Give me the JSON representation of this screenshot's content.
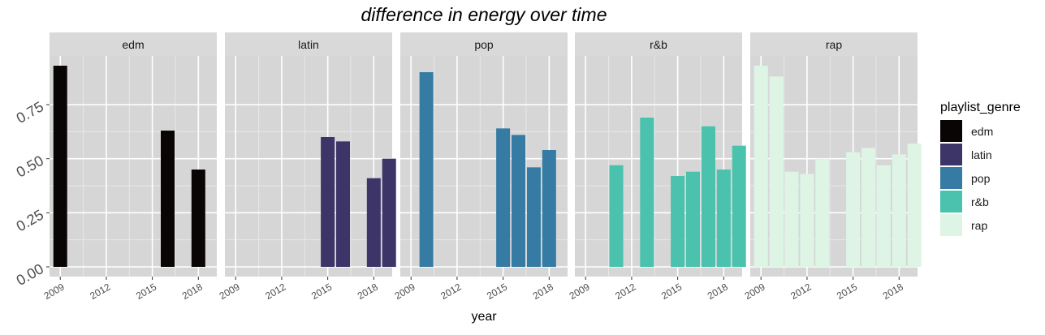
{
  "chart_data": {
    "type": "bar",
    "title": "difference in energy over time",
    "xlabel": "year",
    "ylabel": "",
    "ylim": [
      0,
      0.93
    ],
    "y_ticks": [
      {
        "value": 0.0,
        "label": "0.00"
      },
      {
        "value": 0.25,
        "label": "0.25"
      },
      {
        "value": 0.5,
        "label": "0.50"
      },
      {
        "value": 0.75,
        "label": "0.75"
      }
    ],
    "x_ticks": [
      {
        "value": 2009,
        "label": "2009"
      },
      {
        "value": 2012,
        "label": "2012"
      },
      {
        "value": 2015,
        "label": "2015"
      },
      {
        "value": 2018,
        "label": "2018"
      }
    ],
    "xlim": [
      2008.3,
      2019.2
    ],
    "grid": true,
    "legend": {
      "title": "playlist_genre",
      "position": "right",
      "entries": [
        {
          "name": "edm",
          "color": "#0a0505"
        },
        {
          "name": "latin",
          "color": "#3d3468"
        },
        {
          "name": "pop",
          "color": "#357ba3"
        },
        {
          "name": "r&b",
          "color": "#4ac2ad"
        },
        {
          "name": "rap",
          "color": "#def5e5"
        }
      ]
    },
    "panels": [
      {
        "name": "edm",
        "color": "#0a0505",
        "points": [
          {
            "x": 2009,
            "y": 0.93
          },
          {
            "x": 2016,
            "y": 0.63
          },
          {
            "x": 2018,
            "y": 0.45
          }
        ]
      },
      {
        "name": "latin",
        "color": "#3d3468",
        "points": [
          {
            "x": 2015,
            "y": 0.6
          },
          {
            "x": 2016,
            "y": 0.58
          },
          {
            "x": 2018,
            "y": 0.41
          },
          {
            "x": 2019,
            "y": 0.5
          }
        ]
      },
      {
        "name": "pop",
        "color": "#357ba3",
        "points": [
          {
            "x": 2010,
            "y": 0.9
          },
          {
            "x": 2015,
            "y": 0.64
          },
          {
            "x": 2016,
            "y": 0.61
          },
          {
            "x": 2017,
            "y": 0.46
          },
          {
            "x": 2018,
            "y": 0.54
          }
        ]
      },
      {
        "name": "r&b",
        "color": "#4ac2ad",
        "points": [
          {
            "x": 2011,
            "y": 0.47
          },
          {
            "x": 2013,
            "y": 0.69
          },
          {
            "x": 2015,
            "y": 0.42
          },
          {
            "x": 2016,
            "y": 0.44
          },
          {
            "x": 2017,
            "y": 0.65
          },
          {
            "x": 2018,
            "y": 0.45
          },
          {
            "x": 2019,
            "y": 0.56
          }
        ]
      },
      {
        "name": "rap",
        "color": "#def5e5",
        "points": [
          {
            "x": 2009,
            "y": 0.93
          },
          {
            "x": 2010,
            "y": 0.88
          },
          {
            "x": 2011,
            "y": 0.44
          },
          {
            "x": 2012,
            "y": 0.43
          },
          {
            "x": 2013,
            "y": 0.5
          },
          {
            "x": 2015,
            "y": 0.53
          },
          {
            "x": 2016,
            "y": 0.55
          },
          {
            "x": 2017,
            "y": 0.47
          },
          {
            "x": 2018,
            "y": 0.52
          },
          {
            "x": 2019,
            "y": 0.57
          }
        ]
      }
    ]
  }
}
